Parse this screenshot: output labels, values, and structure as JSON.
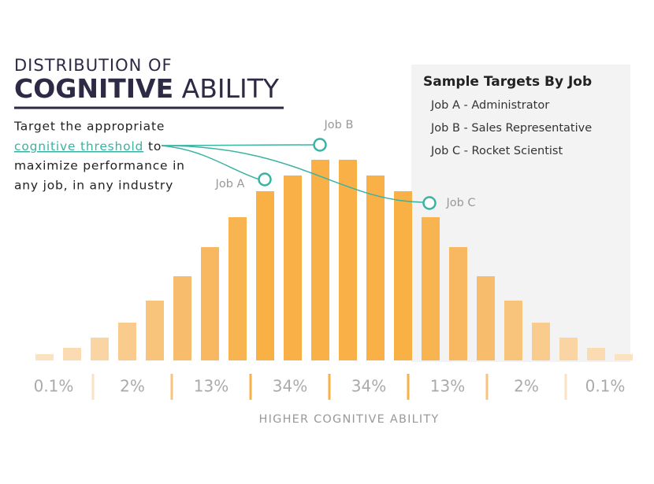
{
  "chart_data": {
    "type": "bar",
    "title_top": "DISTRIBUTION OF",
    "title_bold": "COGNITIVE",
    "title_rest": "ABILITY",
    "description": [
      "Target the appropriate",
      "cognitive threshold",
      "to",
      "maximize performance in",
      "any job, in any industry"
    ],
    "x_label": "HIGHER COGNITIVE ABILITY",
    "values": [
      8,
      16,
      29,
      48,
      76,
      107,
      144,
      182,
      215,
      235,
      255,
      255,
      235,
      215,
      182,
      144,
      107,
      76,
      48,
      29,
      16,
      8
    ],
    "colors": [
      "#fbe2c0",
      "#fbdcb2",
      "#fad5a3",
      "#f9cb8c",
      "#f8c37a",
      "#f8bd6c",
      "#f8b862",
      "#f9b452",
      "#f9b146",
      "#f9b046",
      "#f9b046",
      "#f9b046",
      "#f9b046",
      "#f9b146",
      "#f9b452",
      "#f8b862",
      "#f8bd6c",
      "#f8c37a",
      "#f9cb8c",
      "#fad5a3",
      "#fbdcb2",
      "#fbe2c0"
    ],
    "ylim": [
      0,
      260
    ],
    "regions": [
      "0.1%",
      "2%",
      "13%",
      "34%",
      "34%",
      "13%",
      "2%",
      "0.1%"
    ],
    "annotations": [
      "Job A",
      "Job B",
      "Job C"
    ],
    "legend_title": "Sample Targets By Job",
    "legend_items": [
      "Job A - Administrator",
      "Job B - Sales Representative",
      "Job C - Rocket Scientist"
    ]
  }
}
